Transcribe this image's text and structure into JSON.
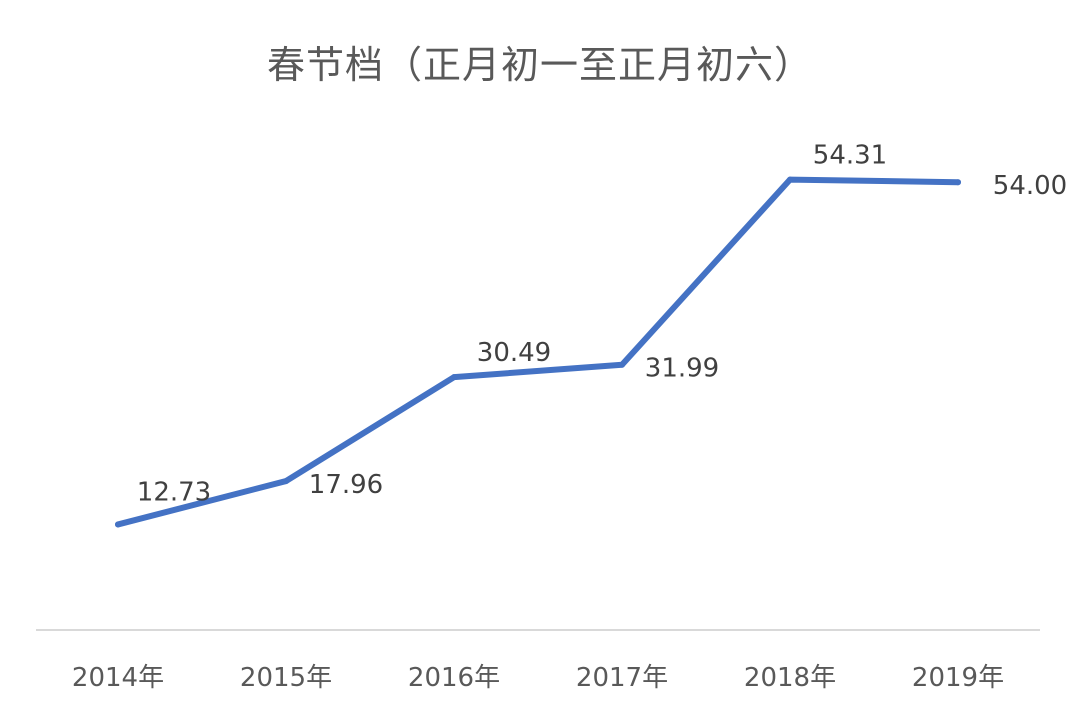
{
  "chart_data": {
    "type": "line",
    "title": "春节档（正月初一至正月初六）",
    "categories": [
      "2014年",
      "2015年",
      "2016年",
      "2017年",
      "2018年",
      "2019年"
    ],
    "series": [
      {
        "values": [
          12.73,
          17.96,
          30.49,
          31.99,
          54.31,
          54.0
        ],
        "labels": [
          "12.73",
          "17.96",
          "30.49",
          "31.99",
          "54.31",
          "54.00"
        ],
        "color": "#4472C4"
      }
    ],
    "ylim": [
      0,
      65
    ],
    "grid": false,
    "legend": "none",
    "axis_line_color": "#D9D9D9"
  }
}
